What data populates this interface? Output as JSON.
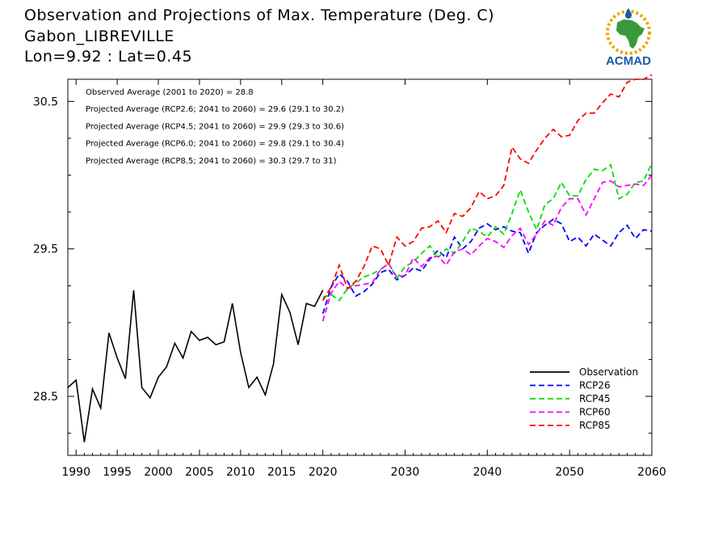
{
  "header": {
    "title": "Observation and Projections of Max. Temperature (Deg. C)",
    "location": "Gabon_LIBREVILLE",
    "coords": "Lon=9.92 : Lat=0.45"
  },
  "logo": {
    "text": "ACMAD",
    "icon": "africa-map-logo-icon",
    "colors": {
      "africa": "#3a9a3a",
      "ring": "#f0a400",
      "text": "#1a5aa8"
    }
  },
  "colors": {
    "observation": "#000000",
    "rcp26": "#0000ff",
    "rcp45": "#00dd00",
    "rcp60": "#ff00ff",
    "rcp85": "#ff0000"
  },
  "chart_data": {
    "type": "line",
    "annotations": [
      "Observed Average (2001 to 2020) = 28.8",
      "Projected Average (RCP2.6; 2041 to 2060) = 29.6 (29.1 to 30.2)",
      "Projected Average (RCP4.5; 2041 to 2060) = 29.9 (29.3 to 30.6)",
      "Projected Average (RCP6.0; 2041 to 2060) = 29.8 (29.1 to 30.4)",
      "Projected Average (RCP8.5; 2041 to 2060) = 30.3 (29.7 to 31)"
    ],
    "xlim": [
      1989,
      2060
    ],
    "ylim": [
      28.1,
      30.65
    ],
    "x_ticks": [
      {
        "value": 1990,
        "label": "1990"
      },
      {
        "value": 1995,
        "label": "1995"
      },
      {
        "value": 2000,
        "label": "2000"
      },
      {
        "value": 2005,
        "label": "2005"
      },
      {
        "value": 2010,
        "label": "2010"
      },
      {
        "value": 2015,
        "label": "2015"
      },
      {
        "value": 2020,
        "label": "2020"
      },
      {
        "value": 2030,
        "label": "2030"
      },
      {
        "value": 2040,
        "label": "2040"
      },
      {
        "value": 2050,
        "label": "2050"
      },
      {
        "value": 2060,
        "label": "2060"
      }
    ],
    "y_ticks": [
      {
        "value": 28.5,
        "label": "28.5"
      },
      {
        "value": 29.5,
        "label": "29.5"
      },
      {
        "value": 30.5,
        "label": "30.5"
      }
    ],
    "grid": false,
    "legend_position": "bottom-right",
    "series": [
      {
        "name": "Observation",
        "style": "solid",
        "x": [
          1989,
          1990,
          1991,
          1992,
          1993,
          1994,
          1995,
          1996,
          1997,
          1998,
          1999,
          2000,
          2001,
          2002,
          2003,
          2004,
          2005,
          2006,
          2007,
          2008,
          2009,
          2010,
          2011,
          2012,
          2013,
          2014,
          2015,
          2016,
          2017,
          2018,
          2019,
          2020
        ],
        "y": [
          28.56,
          28.61,
          28.19,
          28.55,
          28.42,
          28.93,
          28.76,
          28.62,
          29.22,
          28.56,
          28.49,
          28.63,
          28.7,
          28.86,
          28.76,
          28.94,
          28.88,
          28.9,
          28.85,
          28.87,
          29.13,
          28.8,
          28.56,
          28.63,
          28.51,
          28.72,
          29.19,
          29.07,
          28.85,
          29.13,
          29.11,
          29.22
        ]
      },
      {
        "name": "RCP26",
        "style": "dashed",
        "x": [
          2020,
          2021,
          2022,
          2023,
          2024,
          2025,
          2026,
          2027,
          2028,
          2029,
          2030,
          2031,
          2032,
          2033,
          2034,
          2035,
          2036,
          2037,
          2038,
          2039,
          2040,
          2041,
          2042,
          2043,
          2044,
          2045,
          2046,
          2047,
          2048,
          2049,
          2050,
          2051,
          2052,
          2053,
          2054,
          2055,
          2056,
          2057,
          2058,
          2059,
          2060
        ],
        "y": [
          29.06,
          29.24,
          29.33,
          29.28,
          29.18,
          29.21,
          29.26,
          29.34,
          29.36,
          29.29,
          29.32,
          29.37,
          29.35,
          29.43,
          29.49,
          29.44,
          29.58,
          29.5,
          29.55,
          29.64,
          29.67,
          29.63,
          29.65,
          29.62,
          29.61,
          29.47,
          29.61,
          29.66,
          29.7,
          29.67,
          29.55,
          29.58,
          29.52,
          29.6,
          29.56,
          29.52,
          29.61,
          29.66,
          29.57,
          29.63,
          29.62
        ]
      },
      {
        "name": "RCP45",
        "style": "dashed",
        "x": [
          2020,
          2021,
          2022,
          2023,
          2024,
          2025,
          2026,
          2027,
          2028,
          2029,
          2030,
          2031,
          2032,
          2033,
          2034,
          2035,
          2036,
          2037,
          2038,
          2039,
          2040,
          2041,
          2042,
          2043,
          2044,
          2045,
          2046,
          2047,
          2048,
          2049,
          2050,
          2051,
          2052,
          2053,
          2054,
          2055,
          2056,
          2057,
          2058,
          2059,
          2060
        ],
        "y": [
          29.17,
          29.19,
          29.15,
          29.23,
          29.27,
          29.31,
          29.33,
          29.36,
          29.4,
          29.3,
          29.38,
          29.41,
          29.47,
          29.52,
          29.44,
          29.5,
          29.47,
          29.55,
          29.64,
          29.62,
          29.58,
          29.65,
          29.6,
          29.74,
          29.9,
          29.75,
          29.63,
          29.8,
          29.84,
          29.95,
          29.86,
          29.86,
          29.97,
          30.04,
          30.03,
          30.07,
          29.84,
          29.87,
          29.95,
          29.96,
          30.08
        ]
      },
      {
        "name": "RCP60",
        "style": "dashed",
        "x": [
          2020,
          2021,
          2022,
          2023,
          2024,
          2025,
          2026,
          2027,
          2028,
          2029,
          2030,
          2031,
          2032,
          2033,
          2034,
          2035,
          2036,
          2037,
          2038,
          2039,
          2040,
          2041,
          2042,
          2043,
          2044,
          2045,
          2046,
          2047,
          2048,
          2049,
          2050,
          2051,
          2052,
          2053,
          2054,
          2055,
          2056,
          2057,
          2058,
          2059,
          2060
        ],
        "y": [
          29.01,
          29.2,
          29.28,
          29.23,
          29.25,
          29.26,
          29.27,
          29.36,
          29.4,
          29.31,
          29.32,
          29.44,
          29.38,
          29.44,
          29.45,
          29.39,
          29.48,
          29.5,
          29.46,
          29.52,
          29.57,
          29.55,
          29.51,
          29.59,
          29.64,
          29.53,
          29.6,
          29.69,
          29.66,
          29.78,
          29.84,
          29.84,
          29.73,
          29.84,
          29.95,
          29.96,
          29.92,
          29.93,
          29.94,
          29.93,
          30.0
        ]
      },
      {
        "name": "RCP85",
        "style": "dashed",
        "x": [
          2020,
          2021,
          2022,
          2023,
          2024,
          2025,
          2026,
          2027,
          2028,
          2029,
          2030,
          2031,
          2032,
          2033,
          2034,
          2035,
          2036,
          2037,
          2038,
          2039,
          2040,
          2041,
          2042,
          2043,
          2044,
          2045,
          2046,
          2047,
          2048,
          2049,
          2050,
          2051,
          2052,
          2053,
          2054,
          2055,
          2056,
          2057,
          2058,
          2059,
          2060
        ],
        "y": [
          29.15,
          29.24,
          29.39,
          29.23,
          29.28,
          29.38,
          29.52,
          29.5,
          29.39,
          29.58,
          29.52,
          29.55,
          29.64,
          29.65,
          29.69,
          29.61,
          29.74,
          29.72,
          29.78,
          29.89,
          29.84,
          29.86,
          29.93,
          30.19,
          30.11,
          30.08,
          30.17,
          30.25,
          30.31,
          30.26,
          30.27,
          30.37,
          30.42,
          30.42,
          30.49,
          30.55,
          30.53,
          30.63,
          30.65,
          30.65,
          30.68
        ]
      }
    ]
  }
}
